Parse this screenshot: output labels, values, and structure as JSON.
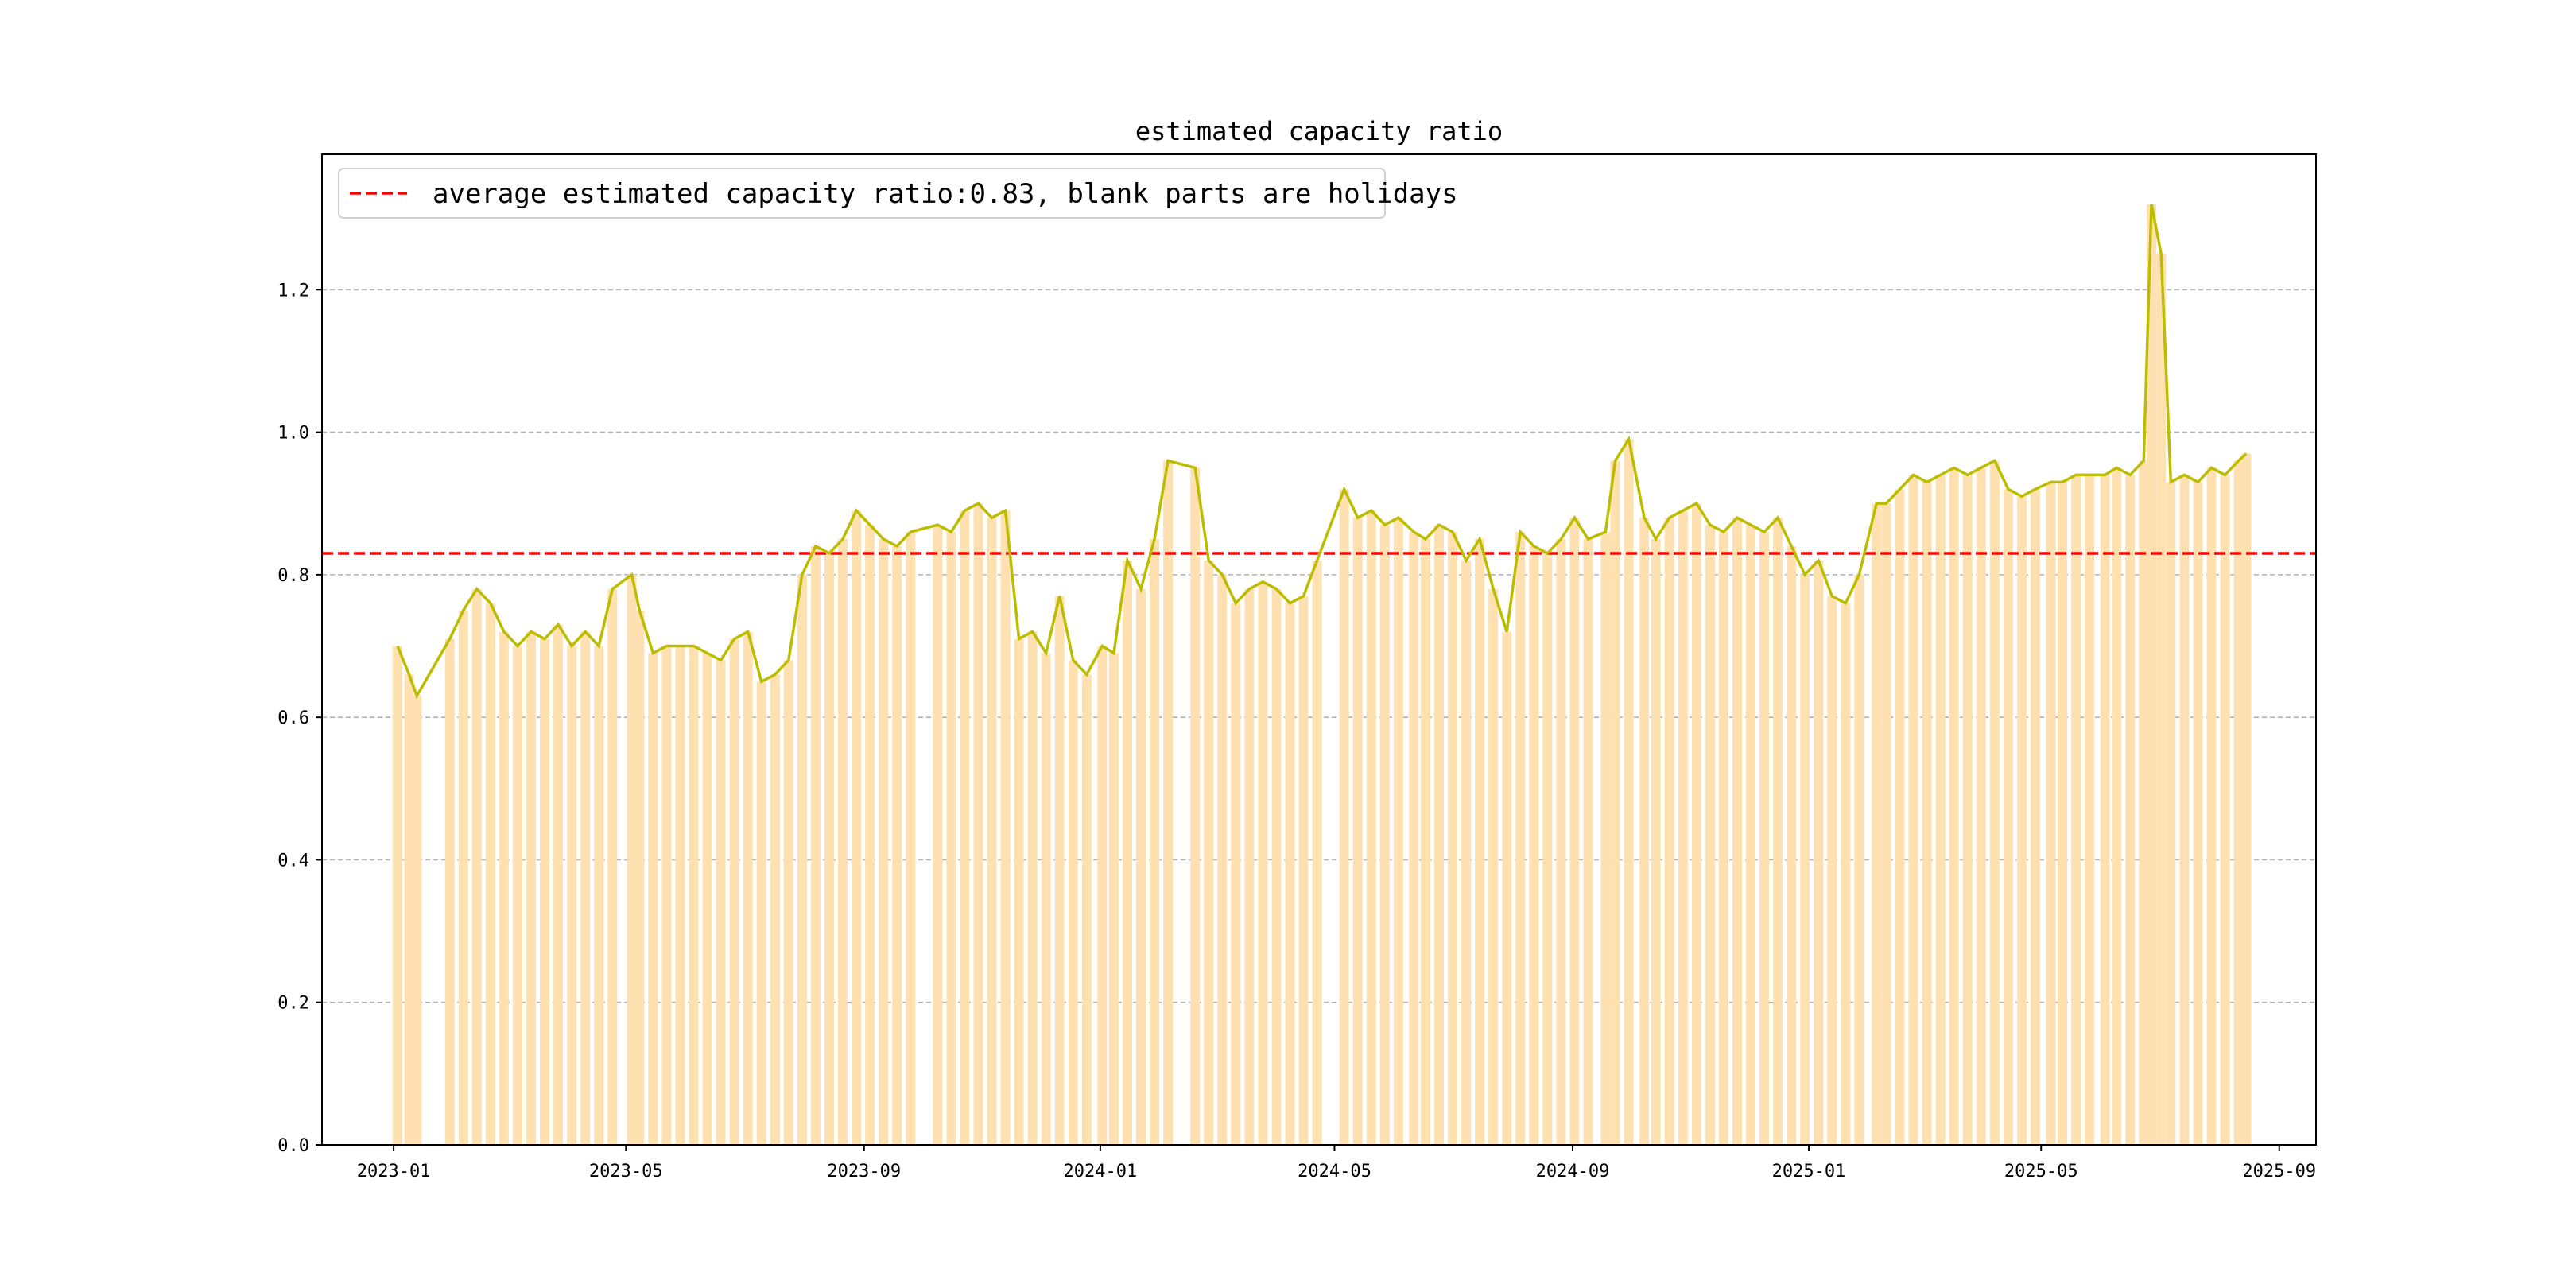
{
  "chart_data": {
    "type": "bar+line",
    "title": "estimated capacity ratio",
    "xlabel": "",
    "ylabel": "",
    "ylim": [
      0,
      1.39
    ],
    "xlim": [
      "2022-11-25",
      "2025-09-20"
    ],
    "grid": "y-dashed",
    "legend": {
      "placement": "top-left",
      "label": "average estimated capacity ratio:0.83, blank parts are holidays"
    },
    "average": 0.83,
    "yticks": [
      0.0,
      0.2,
      0.4,
      0.6,
      0.8,
      1.0,
      1.2
    ],
    "ytick_labels": [
      "0.0",
      "0.2",
      "0.4",
      "0.6",
      "0.8",
      "1.0",
      "1.2"
    ],
    "xticks": [
      "2023-01-01",
      "2023-05-01",
      "2023-09-01",
      "2024-01-01",
      "2024-05-01",
      "2024-09-01",
      "2025-01-01",
      "2025-05-01",
      "2025-09-01"
    ],
    "xtick_labels": [
      "2023-01",
      "2023-05",
      "2023-09",
      "2024-01",
      "2024-05",
      "2024-09",
      "2025-01",
      "2025-05",
      "2025-09"
    ],
    "colors": {
      "bar": "#ffe0b0",
      "line": "#bcbd00",
      "average": "#ff0000",
      "grid": "#b0b0b0"
    },
    "series": [
      [
        "2023-01-03",
        0.7
      ],
      [
        "2023-01-09",
        0.66
      ],
      [
        "2023-01-13",
        0.63
      ],
      [
        "2023-01-30",
        0.71
      ],
      [
        "2023-02-06",
        0.75
      ],
      [
        "2023-02-13",
        0.78
      ],
      [
        "2023-02-20",
        0.76
      ],
      [
        "2023-02-27",
        0.72
      ],
      [
        "2023-03-06",
        0.7
      ],
      [
        "2023-03-13",
        0.72
      ],
      [
        "2023-03-20",
        0.71
      ],
      [
        "2023-03-27",
        0.73
      ],
      [
        "2023-04-03",
        0.7
      ],
      [
        "2023-04-10",
        0.72
      ],
      [
        "2023-04-17",
        0.7
      ],
      [
        "2023-04-24",
        0.78
      ],
      [
        "2023-05-04",
        0.8
      ],
      [
        "2023-05-08",
        0.75
      ],
      [
        "2023-05-15",
        0.69
      ],
      [
        "2023-05-22",
        0.7
      ],
      [
        "2023-05-29",
        0.7
      ],
      [
        "2023-06-05",
        0.7
      ],
      [
        "2023-06-12",
        0.69
      ],
      [
        "2023-06-19",
        0.68
      ],
      [
        "2023-06-26",
        0.71
      ],
      [
        "2023-07-03",
        0.72
      ],
      [
        "2023-07-10",
        0.65
      ],
      [
        "2023-07-17",
        0.66
      ],
      [
        "2023-07-24",
        0.68
      ],
      [
        "2023-07-31",
        0.8
      ],
      [
        "2023-08-07",
        0.84
      ],
      [
        "2023-08-14",
        0.83
      ],
      [
        "2023-08-21",
        0.85
      ],
      [
        "2023-08-28",
        0.89
      ],
      [
        "2023-09-04",
        0.87
      ],
      [
        "2023-09-11",
        0.85
      ],
      [
        "2023-09-18",
        0.84
      ],
      [
        "2023-09-25",
        0.86
      ],
      [
        "2023-10-09",
        0.87
      ],
      [
        "2023-10-16",
        0.86
      ],
      [
        "2023-10-23",
        0.89
      ],
      [
        "2023-10-30",
        0.9
      ],
      [
        "2023-11-06",
        0.88
      ],
      [
        "2023-11-13",
        0.89
      ],
      [
        "2023-11-20",
        0.71
      ],
      [
        "2023-11-27",
        0.72
      ],
      [
        "2023-12-04",
        0.69
      ],
      [
        "2023-12-11",
        0.77
      ],
      [
        "2023-12-18",
        0.68
      ],
      [
        "2023-12-25",
        0.66
      ],
      [
        "2024-01-02",
        0.7
      ],
      [
        "2024-01-08",
        0.69
      ],
      [
        "2024-01-15",
        0.82
      ],
      [
        "2024-01-22",
        0.78
      ],
      [
        "2024-01-29",
        0.85
      ],
      [
        "2024-02-05",
        0.96
      ],
      [
        "2024-02-19",
        0.95
      ],
      [
        "2024-02-26",
        0.82
      ],
      [
        "2024-03-04",
        0.8
      ],
      [
        "2024-03-11",
        0.76
      ],
      [
        "2024-03-18",
        0.78
      ],
      [
        "2024-03-25",
        0.79
      ],
      [
        "2024-04-01",
        0.78
      ],
      [
        "2024-04-08",
        0.76
      ],
      [
        "2024-04-15",
        0.77
      ],
      [
        "2024-04-22",
        0.82
      ],
      [
        "2024-05-06",
        0.92
      ],
      [
        "2024-05-13",
        0.88
      ],
      [
        "2024-05-20",
        0.89
      ],
      [
        "2024-05-27",
        0.87
      ],
      [
        "2024-06-03",
        0.88
      ],
      [
        "2024-06-11",
        0.86
      ],
      [
        "2024-06-17",
        0.85
      ],
      [
        "2024-06-24",
        0.87
      ],
      [
        "2024-07-01",
        0.86
      ],
      [
        "2024-07-08",
        0.82
      ],
      [
        "2024-07-15",
        0.85
      ],
      [
        "2024-07-22",
        0.78
      ],
      [
        "2024-07-29",
        0.72
      ],
      [
        "2024-08-05",
        0.86
      ],
      [
        "2024-08-12",
        0.84
      ],
      [
        "2024-08-19",
        0.83
      ],
      [
        "2024-08-26",
        0.85
      ],
      [
        "2024-09-02",
        0.88
      ],
      [
        "2024-09-09",
        0.85
      ],
      [
        "2024-09-18",
        0.86
      ],
      [
        "2024-09-23",
        0.96
      ],
      [
        "2024-09-30",
        0.99
      ],
      [
        "2024-10-08",
        0.88
      ],
      [
        "2024-10-14",
        0.85
      ],
      [
        "2024-10-21",
        0.88
      ],
      [
        "2024-10-28",
        0.89
      ],
      [
        "2024-11-04",
        0.9
      ],
      [
        "2024-11-11",
        0.87
      ],
      [
        "2024-11-18",
        0.86
      ],
      [
        "2024-11-25",
        0.88
      ],
      [
        "2024-12-02",
        0.87
      ],
      [
        "2024-12-09",
        0.86
      ],
      [
        "2024-12-16",
        0.88
      ],
      [
        "2024-12-23",
        0.84
      ],
      [
        "2024-12-30",
        0.8
      ],
      [
        "2025-01-06",
        0.82
      ],
      [
        "2025-01-13",
        0.77
      ],
      [
        "2025-01-20",
        0.76
      ],
      [
        "2025-01-27",
        0.8
      ],
      [
        "2025-02-05",
        0.9
      ],
      [
        "2025-02-10",
        0.9
      ],
      [
        "2025-02-17",
        0.92
      ],
      [
        "2025-02-24",
        0.94
      ],
      [
        "2025-03-03",
        0.93
      ],
      [
        "2025-03-10",
        0.94
      ],
      [
        "2025-03-17",
        0.95
      ],
      [
        "2025-03-24",
        0.94
      ],
      [
        "2025-03-31",
        0.95
      ],
      [
        "2025-04-07",
        0.96
      ],
      [
        "2025-04-14",
        0.92
      ],
      [
        "2025-04-21",
        0.91
      ],
      [
        "2025-04-28",
        0.92
      ],
      [
        "2025-05-06",
        0.93
      ],
      [
        "2025-05-12",
        0.93
      ],
      [
        "2025-05-19",
        0.94
      ],
      [
        "2025-05-26",
        0.94
      ],
      [
        "2025-06-03",
        0.94
      ],
      [
        "2025-06-09",
        0.95
      ],
      [
        "2025-06-16",
        0.94
      ],
      [
        "2025-06-23",
        0.96
      ],
      [
        "2025-06-27",
        1.32
      ],
      [
        "2025-07-02",
        1.25
      ],
      [
        "2025-07-07",
        0.93
      ],
      [
        "2025-07-14",
        0.94
      ],
      [
        "2025-07-21",
        0.93
      ],
      [
        "2025-07-28",
        0.95
      ],
      [
        "2025-08-04",
        0.94
      ],
      [
        "2025-08-11",
        0.96
      ],
      [
        "2025-08-15",
        0.97
      ]
    ]
  }
}
